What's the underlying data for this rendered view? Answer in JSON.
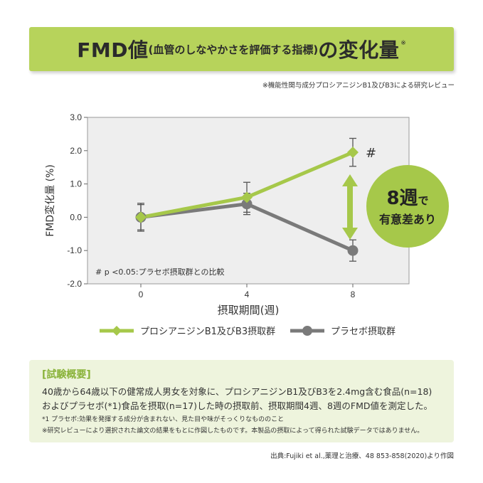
{
  "header": {
    "title_main": "FMD値",
    "title_paren": "(血管のしなやかさを評価する指標)",
    "title_tail": "の変化量",
    "title_mark": "※"
  },
  "source_note": "※機能性関与成分プロシアニジンB1及びB3による研究レビュー",
  "chart_data": {
    "type": "line",
    "ylabel": "FMD変化量 (%)",
    "xlabel": "摂取期間(週)",
    "x": [
      0,
      4,
      8
    ],
    "x_tick_labels": [
      "0",
      "4",
      "8"
    ],
    "ylim": [
      -2.0,
      3.0
    ],
    "y_ticks": [
      3.0,
      2.0,
      1.0,
      0.0,
      -1.0,
      -2.0
    ],
    "y_tick_labels": [
      "3.0",
      "2.0",
      "1.0",
      "0.0",
      "-1.0",
      "-2.0"
    ],
    "series": [
      {
        "name": "プロシアニジンB1及びB3摂取群",
        "values": [
          0.0,
          0.6,
          1.95
        ],
        "error": [
          0.42,
          0.45,
          0.42
        ],
        "color": "#a6c84a",
        "marker": "diamond"
      },
      {
        "name": "プラセボ摂取群",
        "values": [
          0.0,
          0.4,
          -1.0
        ],
        "error": [
          0.38,
          0.32,
          0.32
        ],
        "color": "#7a7a7a",
        "marker": "circle"
      }
    ],
    "significance_mark": "#",
    "significance_note": "# p <0.05:プラセボ摂取群との比較",
    "callout": {
      "line1_big": "8週",
      "line1_small": "で",
      "line2": "有意差あり"
    },
    "legend_position": "bottom",
    "grid": false
  },
  "summary": {
    "title": "[試験概要]",
    "line1": "40歳から64歳以下の健常成人男女を対象に、プロシアニジンB1及びB3を2.4mg含む食品(n=18)",
    "line2": "およびプラセボ(*1)食品を摂取(n=17)した時の摂取前、摂取期間4週、8週のFMD値を測定した。",
    "note1": "*1 プラセボ:効果を発揮する成分が含まれない、見た目や味がそっくりなもののこと",
    "note2": "※研究レビューにより選択された論文の結果をもとに作図したものです。本製品の摂取によって得られた試験データではありません。"
  },
  "citation": "出典:Fujiki et al.,薬理と治療、48 853-858(2020)より作図",
  "colors": {
    "banner": "#b7d35b",
    "accent_green": "#a6c84a",
    "placebo_gray": "#7a7a7a",
    "plot_bg": "#eeeeee",
    "summary_bg": "#eef4dd",
    "summary_title": "#8ab33a"
  }
}
